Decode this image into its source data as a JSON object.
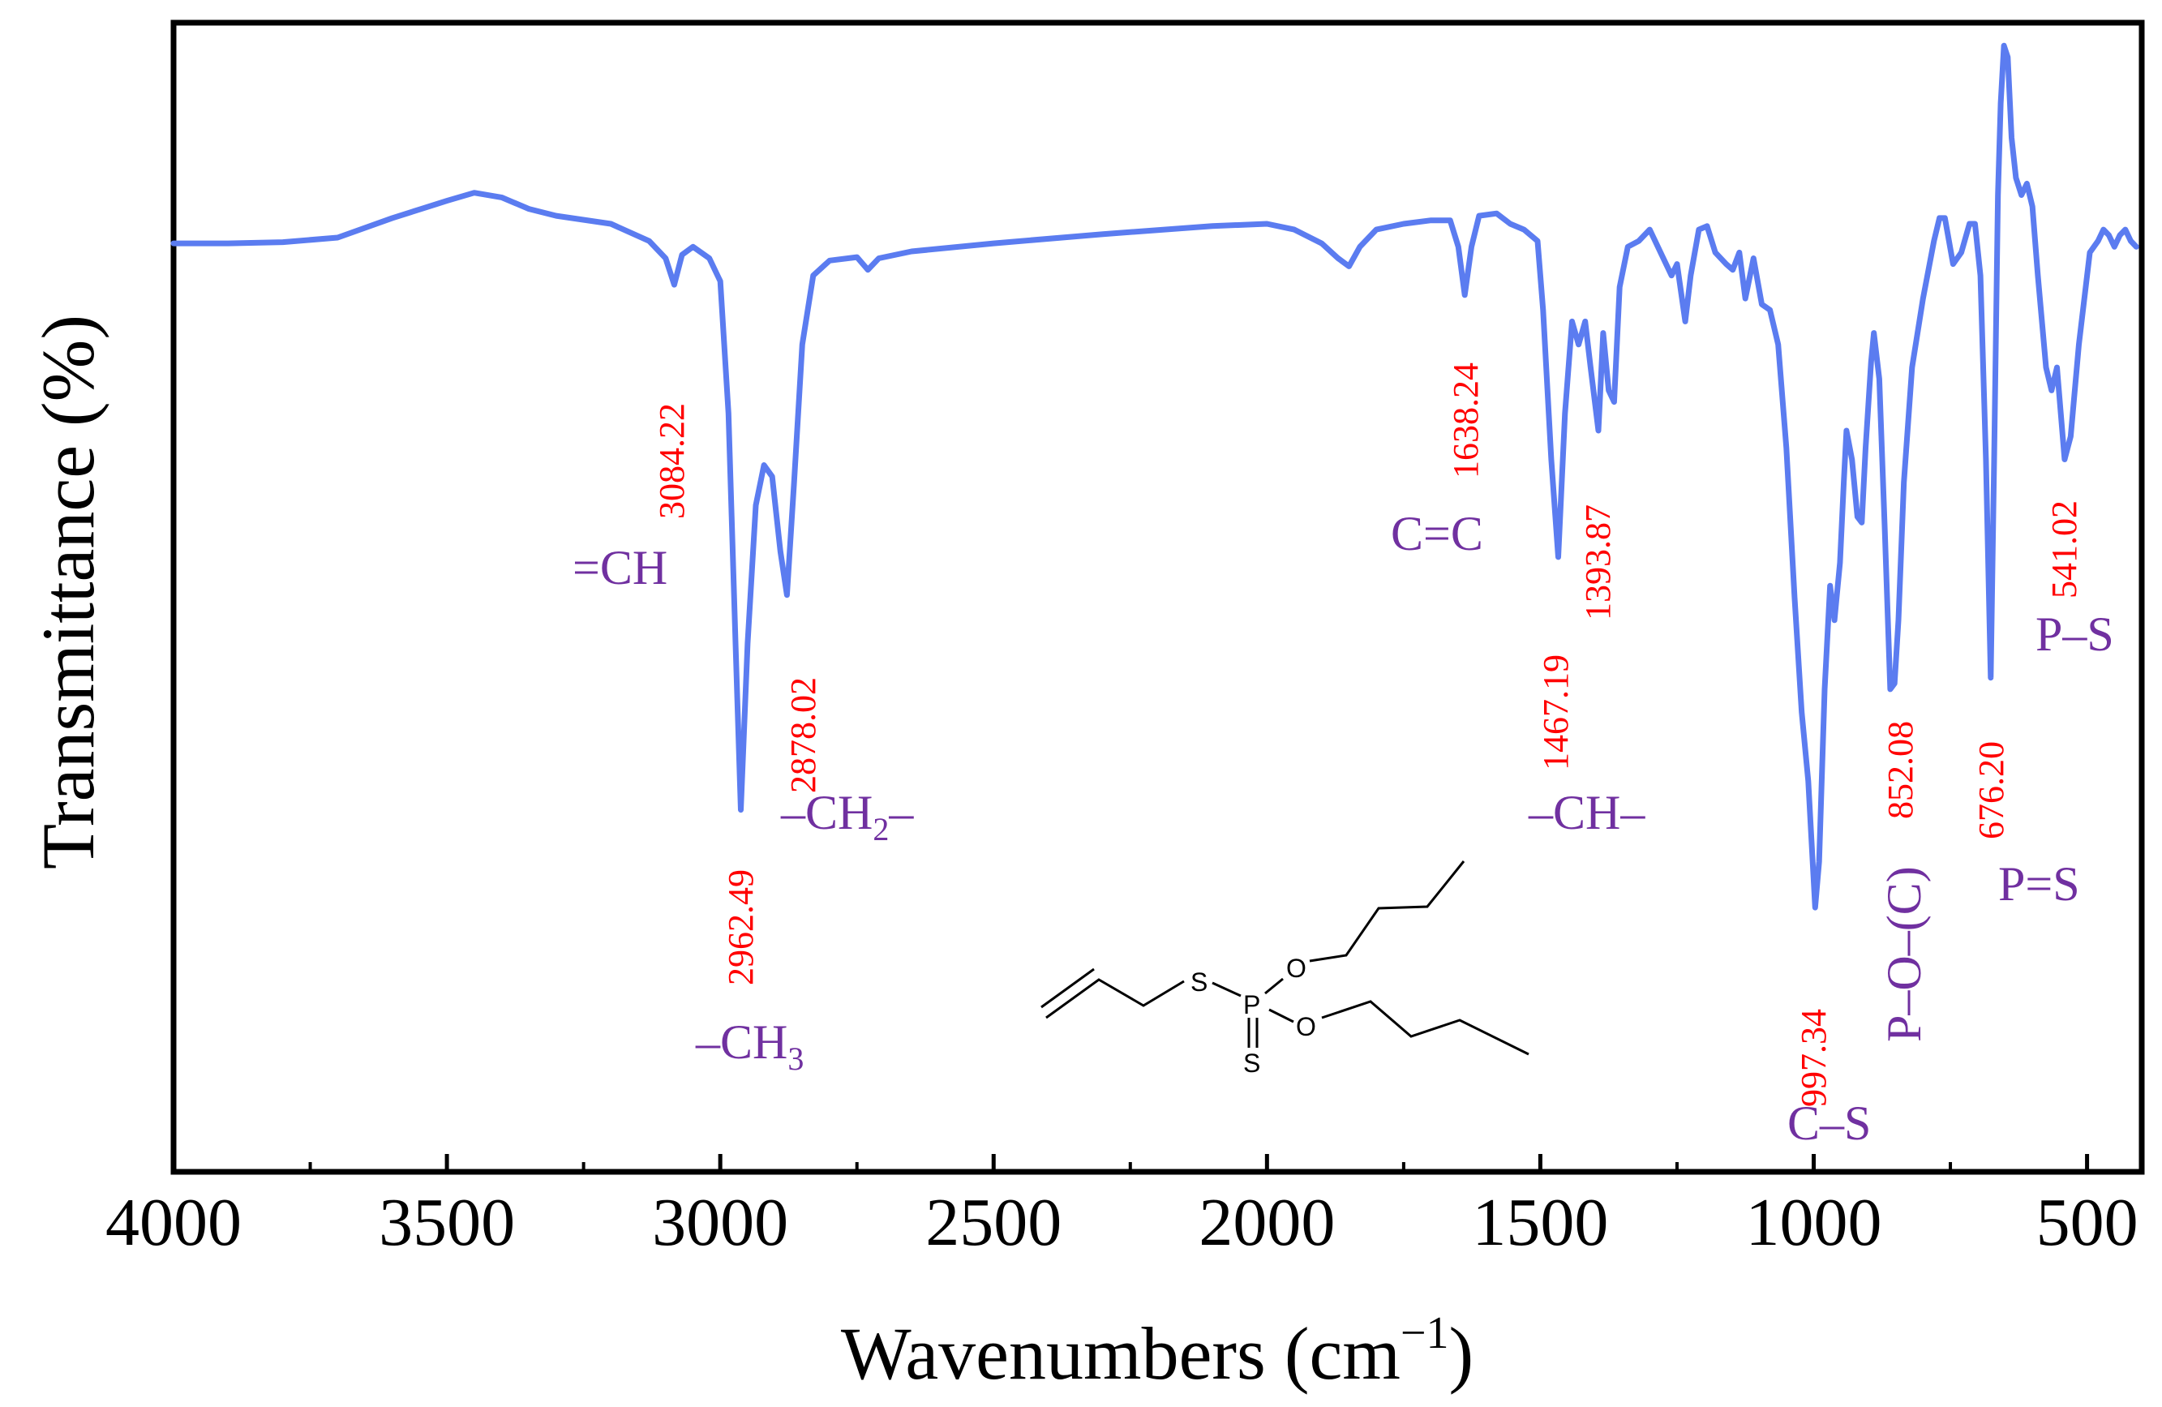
{
  "chart_data": {
    "type": "line",
    "title": "",
    "xlabel": "Wavenumbers (cm",
    "xlabel_sup": "−1",
    "xlabel_close": ")",
    "ylabel": "Transmittance (%)",
    "xlim": [
      4000,
      400
    ],
    "ylim": [
      0,
      100
    ],
    "x_ticks": [
      4000,
      3500,
      3000,
      2500,
      2000,
      1500,
      1000,
      500
    ],
    "x_tick_labels": [
      "4000",
      "3500",
      "3000",
      "2500",
      "2000",
      "1500",
      "1000",
      "500"
    ],
    "line_color": "#5b7cf0",
    "series": [
      {
        "name": "FTIR spectrum",
        "points": [
          [
            4000,
            80.8
          ],
          [
            3900,
            80.8
          ],
          [
            3800,
            80.9
          ],
          [
            3700,
            81.3
          ],
          [
            3600,
            83.0
          ],
          [
            3500,
            84.5
          ],
          [
            3450,
            85.2
          ],
          [
            3400,
            84.8
          ],
          [
            3350,
            83.8
          ],
          [
            3300,
            83.2
          ],
          [
            3200,
            82.5
          ],
          [
            3130,
            81.0
          ],
          [
            3100,
            79.5
          ],
          [
            3084.22,
            77.2
          ],
          [
            3070,
            79.8
          ],
          [
            3050,
            80.5
          ],
          [
            3020,
            79.5
          ],
          [
            3000,
            77.5
          ],
          [
            2985,
            66.0
          ],
          [
            2972,
            46.0
          ],
          [
            2962.49,
            31.5
          ],
          [
            2950,
            46.0
          ],
          [
            2935,
            58.0
          ],
          [
            2920,
            61.5
          ],
          [
            2905,
            60.5
          ],
          [
            2890,
            54.0
          ],
          [
            2878.02,
            50.2
          ],
          [
            2865,
            60.0
          ],
          [
            2850,
            72.0
          ],
          [
            2830,
            78.0
          ],
          [
            2800,
            79.3
          ],
          [
            2750,
            79.6
          ],
          [
            2730,
            78.5
          ],
          [
            2710,
            79.5
          ],
          [
            2650,
            80.1
          ],
          [
            2500,
            80.8
          ],
          [
            2300,
            81.6
          ],
          [
            2100,
            82.3
          ],
          [
            2000,
            82.5
          ],
          [
            1950,
            82.0
          ],
          [
            1900,
            80.8
          ],
          [
            1870,
            79.5
          ],
          [
            1850,
            78.8
          ],
          [
            1830,
            80.5
          ],
          [
            1800,
            82.0
          ],
          [
            1750,
            82.5
          ],
          [
            1700,
            82.8
          ],
          [
            1665,
            82.8
          ],
          [
            1650,
            80.5
          ],
          [
            1638.24,
            76.3
          ],
          [
            1626,
            80.5
          ],
          [
            1612,
            83.2
          ],
          [
            1580,
            83.4
          ],
          [
            1555,
            82.5
          ],
          [
            1530,
            82.0
          ],
          [
            1505,
            81.0
          ],
          [
            1495,
            75.0
          ],
          [
            1480,
            62.0
          ],
          [
            1467.19,
            53.5
          ],
          [
            1455,
            66.0
          ],
          [
            1442,
            74.0
          ],
          [
            1430,
            72.0
          ],
          [
            1418,
            74.0
          ],
          [
            1408,
            70.0
          ],
          [
            1393.87,
            64.5
          ],
          [
            1385,
            73.0
          ],
          [
            1375,
            68.0
          ],
          [
            1365,
            67.0
          ],
          [
            1355,
            77.0
          ],
          [
            1340,
            80.5
          ],
          [
            1320,
            81.0
          ],
          [
            1300,
            82.0
          ],
          [
            1280,
            80.0
          ],
          [
            1260,
            78.0
          ],
          [
            1250,
            79.0
          ],
          [
            1235,
            74.0
          ],
          [
            1225,
            78.0
          ],
          [
            1210,
            82.0
          ],
          [
            1195,
            82.3
          ],
          [
            1180,
            80.0
          ],
          [
            1160,
            79.0
          ],
          [
            1148,
            78.5
          ],
          [
            1136,
            80.0
          ],
          [
            1125,
            76.0
          ],
          [
            1110,
            79.5
          ],
          [
            1095,
            75.5
          ],
          [
            1080,
            75.0
          ],
          [
            1065,
            72.0
          ],
          [
            1050,
            63.0
          ],
          [
            1035,
            50.0
          ],
          [
            1022,
            40.0
          ],
          [
            1010,
            34.0
          ],
          [
            997.34,
            23.0
          ],
          [
            990,
            27.0
          ],
          [
            980,
            42.0
          ],
          [
            970,
            51.0
          ],
          [
            962,
            48.0
          ],
          [
            952,
            53.0
          ],
          [
            945,
            60.0
          ],
          [
            940,
            64.5
          ],
          [
            930,
            62.0
          ],
          [
            920,
            57.0
          ],
          [
            912,
            56.5
          ],
          [
            905,
            63.0
          ],
          [
            895,
            70.5
          ],
          [
            890,
            73.0
          ],
          [
            880,
            69.0
          ],
          [
            870,
            56.0
          ],
          [
            860,
            42.0
          ],
          [
            852.08,
            42.5
          ],
          [
            845,
            48.0
          ],
          [
            835,
            60.0
          ],
          [
            820,
            70.0
          ],
          [
            800,
            76.0
          ],
          [
            780,
            81.0
          ],
          [
            770,
            83.0
          ],
          [
            760,
            83.0
          ],
          [
            745,
            79.0
          ],
          [
            730,
            80.0
          ],
          [
            715,
            82.5
          ],
          [
            705,
            82.5
          ],
          [
            695,
            78.0
          ],
          [
            685,
            62.0
          ],
          [
            676.2,
            43.0
          ],
          [
            670,
            62.0
          ],
          [
            663,
            85.0
          ],
          [
            658,
            93.0
          ],
          [
            652,
            98.0
          ],
          [
            645,
            97.0
          ],
          [
            638,
            90.0
          ],
          [
            630,
            86.5
          ],
          [
            620,
            85.0
          ],
          [
            610,
            86.0
          ],
          [
            600,
            84.0
          ],
          [
            590,
            78.0
          ],
          [
            575,
            70.0
          ],
          [
            565,
            68.0
          ],
          [
            555,
            70.0
          ],
          [
            541.02,
            62.0
          ],
          [
            530,
            64.0
          ],
          [
            515,
            72.0
          ],
          [
            495,
            80.0
          ],
          [
            480,
            81.0
          ],
          [
            470,
            82.0
          ],
          [
            460,
            81.5
          ],
          [
            450,
            80.5
          ],
          [
            440,
            81.5
          ],
          [
            430,
            82.0
          ],
          [
            420,
            81.0
          ],
          [
            410,
            80.5
          ]
        ]
      }
    ],
    "peak_labels": [
      {
        "wavenumber": 3084.22,
        "label": "3084.22"
      },
      {
        "wavenumber": 2962.49,
        "label": "2962.49"
      },
      {
        "wavenumber": 2878.02,
        "label": "2878.02"
      },
      {
        "wavenumber": 1638.24,
        "label": "1638.24"
      },
      {
        "wavenumber": 1467.19,
        "label": "1467.19"
      },
      {
        "wavenumber": 1393.87,
        "label": "1393.87"
      },
      {
        "wavenumber": 997.34,
        "label": "997.34"
      },
      {
        "wavenumber": 852.08,
        "label": "852.08"
      },
      {
        "wavenumber": 676.2,
        "label": "676.20"
      },
      {
        "wavenumber": 541.02,
        "label": "541.02"
      }
    ],
    "group_labels": [
      {
        "text": "=CH"
      },
      {
        "text": "–CH",
        "sub": "2",
        "suffix": "–"
      },
      {
        "text": "–CH",
        "sub": "3",
        "suffix": ""
      },
      {
        "text": "C=C"
      },
      {
        "text": "–CH–"
      },
      {
        "text": "C–S"
      },
      {
        "text": "P–O–(C)"
      },
      {
        "text": "P=S"
      },
      {
        "text": "P–S"
      }
    ],
    "molecule_atoms": [
      "S",
      "P",
      "O",
      "O",
      "S"
    ],
    "colors": {
      "peak_label": "#ff0000",
      "group_label": "#7030a0"
    }
  }
}
